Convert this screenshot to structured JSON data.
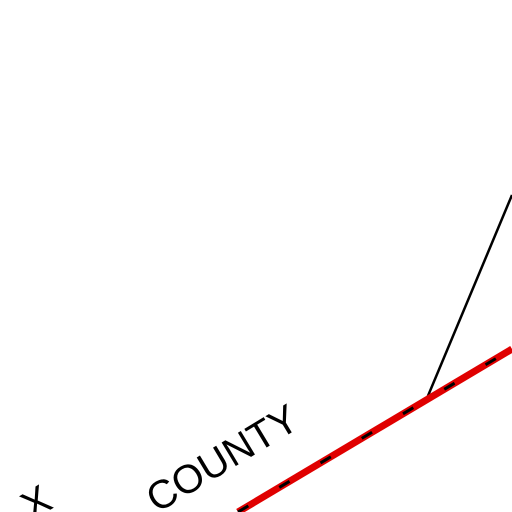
{
  "map": {
    "labels": [
      "COUNTY",
      "X"
    ]
  }
}
